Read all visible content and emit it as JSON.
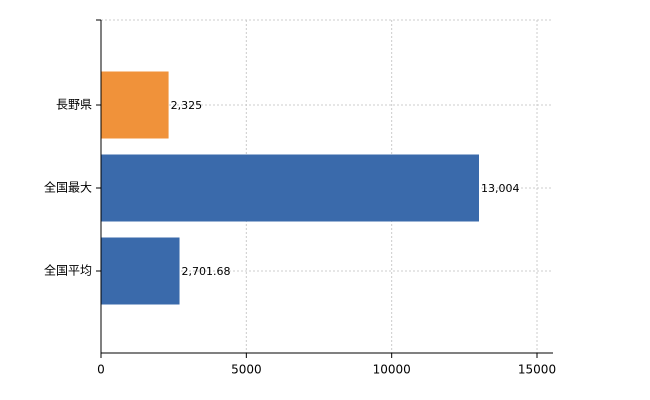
{
  "chart_data": {
    "type": "barh",
    "categories": [
      "長野県",
      "全国最大",
      "全国平均"
    ],
    "values": [
      2325,
      13004,
      2701.68
    ],
    "value_labels": [
      "2,325",
      "13,004",
      "2,701.68"
    ],
    "colors": [
      "#f0923a",
      "#3a6aab",
      "#3a6aab"
    ],
    "xlim": [
      0,
      15550
    ],
    "xticks": [
      0,
      5000,
      10000,
      15000
    ],
    "grid": true
  }
}
